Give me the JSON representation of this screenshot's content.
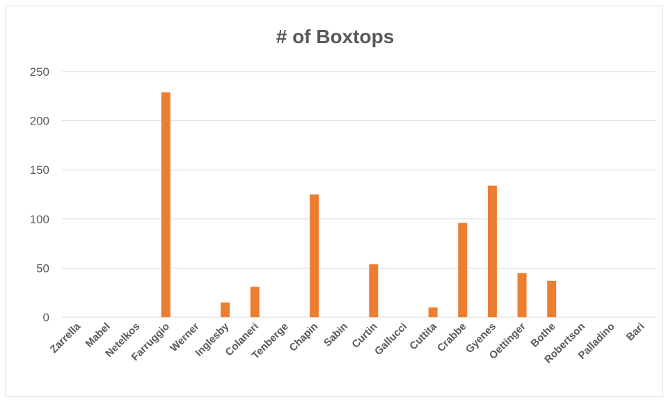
{
  "chart_data": {
    "type": "bar",
    "title": "# of Boxtops",
    "categories": [
      "Zarrella",
      "Mabel",
      "Netelkos",
      "Farruggio",
      "Werner",
      "Inglesby",
      "Colaneri",
      "Tenberge",
      "Chapin",
      "Sabin",
      "Curtin",
      "Gallucci",
      "Cuttita",
      "Crabbe",
      "Gyenes",
      "Oettinger",
      "Bothe",
      "Robertson",
      "Palladino",
      "Bari"
    ],
    "values": [
      0,
      0,
      0,
      229,
      0,
      15,
      31,
      0,
      125,
      0,
      54,
      0,
      10,
      96,
      134,
      45,
      37,
      0,
      0,
      0
    ],
    "ylim": [
      0,
      250
    ],
    "yticks": [
      0,
      50,
      100,
      150,
      200,
      250
    ],
    "grid": true,
    "legend": "none",
    "bar_color": "#ED7D31",
    "grid_color": "#d9d9d9"
  }
}
